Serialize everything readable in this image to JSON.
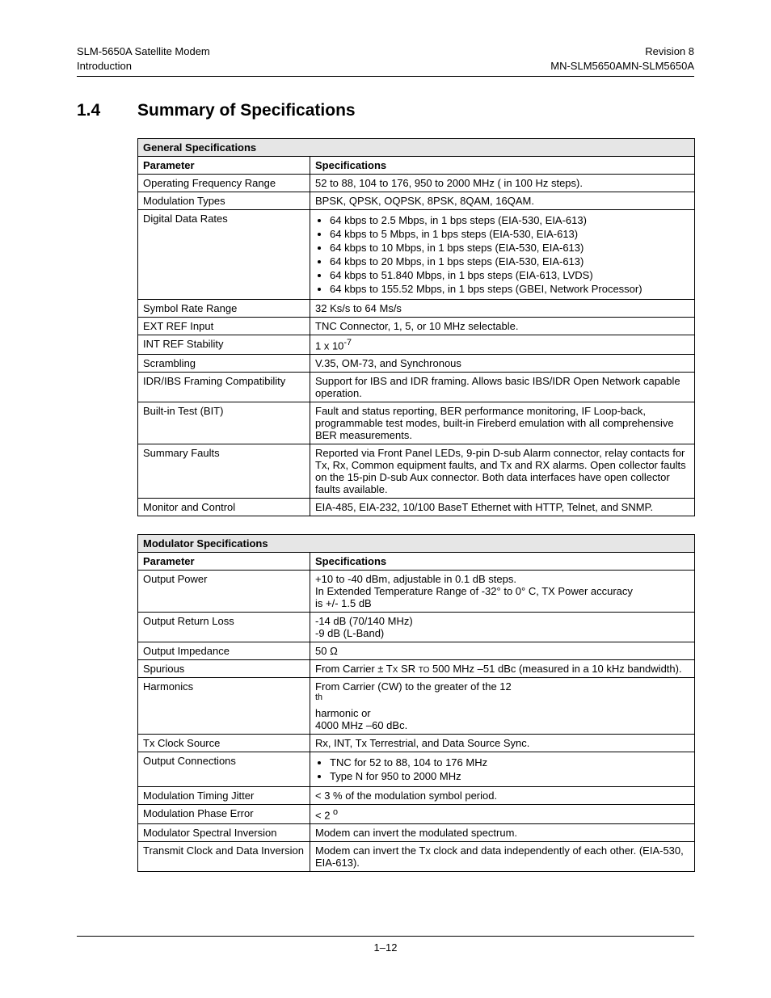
{
  "header": {
    "left_line1": "SLM-5650A Satellite Modem",
    "left_line2": "Introduction",
    "right_line1": "Revision 8",
    "right_line2": "MN-SLM5650AMN-SLM5650A"
  },
  "section": {
    "number": "1.4",
    "title": "Summary of Specifications"
  },
  "table1": {
    "title": "General Specifications",
    "col1": "Parameter",
    "col2": "Specifications",
    "rows": {
      "r1": {
        "p": "Operating Frequency Range",
        "s": "52 to 88, 104 to 176, 950 to 2000 MHz ( in 100 Hz steps)."
      },
      "r2": {
        "p": "Modulation Types",
        "s": "BPSK, QPSK, OQPSK, 8PSK, 8QAM, 16QAM."
      },
      "r3": {
        "p": "Digital Data Rates",
        "b1": "64 kbps to 2.5 Mbps, in 1 bps steps (EIA-530, EIA-613)",
        "b2": "64 kbps to 5 Mbps, in 1 bps steps (EIA-530, EIA-613)",
        "b3": "64 kbps to 10 Mbps, in 1 bps steps (EIA-530, EIA-613)",
        "b4": "64 kbps to 20 Mbps, in 1 bps steps (EIA-530, EIA-613)",
        "b5": "64 kbps to 51.840 Mbps, in 1 bps steps (EIA-613, LVDS)",
        "b6": "64 kbps to 155.52 Mbps, in 1 bps steps (GBEI, Network Processor)"
      },
      "r4": {
        "p": "Symbol Rate Range",
        "s": "32 Ks/s to 64 Ms/s"
      },
      "r5": {
        "p": "EXT REF Input",
        "s": "TNC Connector, 1, 5, or 10 MHz selectable."
      },
      "r6": {
        "p": "INT REF Stability",
        "s_pre": "1 x 10",
        "s_sup": "-7"
      },
      "r7": {
        "p": "Scrambling",
        "s": "V.35, OM-73, and Synchronous"
      },
      "r8": {
        "p": "IDR/IBS Framing Compatibility",
        "s": "Support for IBS and IDR framing. Allows basic IBS/IDR Open Network capable operation."
      },
      "r9": {
        "p": "Built-in Test (BIT)",
        "s": "Fault and status reporting, BER performance monitoring, IF Loop-back, programmable test modes, built-in Fireberd emulation with all comprehensive BER measurements."
      },
      "r10": {
        "p": "Summary Faults",
        "s": "Reported via Front Panel LEDs, 9-pin D-sub Alarm connector, relay contacts for Tx, Rx, Common equipment faults, and Tx and RX alarms. Open collector faults on the 15-pin D-sub Aux connector. Both data interfaces have open collector faults available."
      },
      "r11": {
        "p": "Monitor and Control",
        "s": "EIA-485, EIA-232, 10/100 BaseT Ethernet with HTTP, Telnet, and SNMP."
      }
    }
  },
  "table2": {
    "title": "Modulator Specifications",
    "col1": "Parameter",
    "col2": "Specifications",
    "rows": {
      "r1": {
        "p": "Output Power",
        "l1": "+10 to  -40 dBm, adjustable in 0.1 dB steps.",
        "l2": "In Extended Temperature Range of -32° to 0° C, TX Power accuracy",
        "l3": "is +/- 1.5 dB"
      },
      "r2": {
        "p": "Output Return Loss",
        "l1": "-14 dB (70/140 MHz)",
        "l2": "-9 dB (L-Band)"
      },
      "r3": {
        "p": "Output Impedance",
        "s": "50 Ω"
      },
      "r4": {
        "p": "Spurious",
        "pre": "From Carrier ± T",
        "sc1": "X",
        "mid1": " SR ",
        "sc2": "TO",
        "post": " 500  MHz –51 dBc (measured in a 10 kHz bandwidth)."
      },
      "r5": {
        "p": "Harmonics",
        "pre": "From Carrier (CW) to the greater of the 12",
        "sup": "th",
        "post": " harmonic or",
        "l2": "4000 MHz –60 dBc."
      },
      "r6": {
        "p": "Tx Clock Source",
        "s": "Rx, INT, Tx Terrestrial, and Data Source Sync."
      },
      "r7": {
        "p": "Output Connections",
        "b1": "TNC for 52 to 88, 104 to 176 MHz",
        "b2": "Type N for 950 to 2000 MHz"
      },
      "r8": {
        "p": "Modulation Timing Jitter",
        "s": "< 3 % of the modulation symbol period."
      },
      "r9": {
        "p": "Modulation Phase Error",
        "pre": "< 2 ",
        "sup": "o"
      },
      "r10": {
        "p": "Modulator Spectral Inversion",
        "s": "Modem can invert the modulated spectrum."
      },
      "r11": {
        "p": "Transmit Clock and Data Inversion",
        "s": "Modem can invert the Tx clock and data independently of each other. (EIA-530, EIA-613)."
      }
    }
  },
  "footer": {
    "page": "1–12"
  }
}
